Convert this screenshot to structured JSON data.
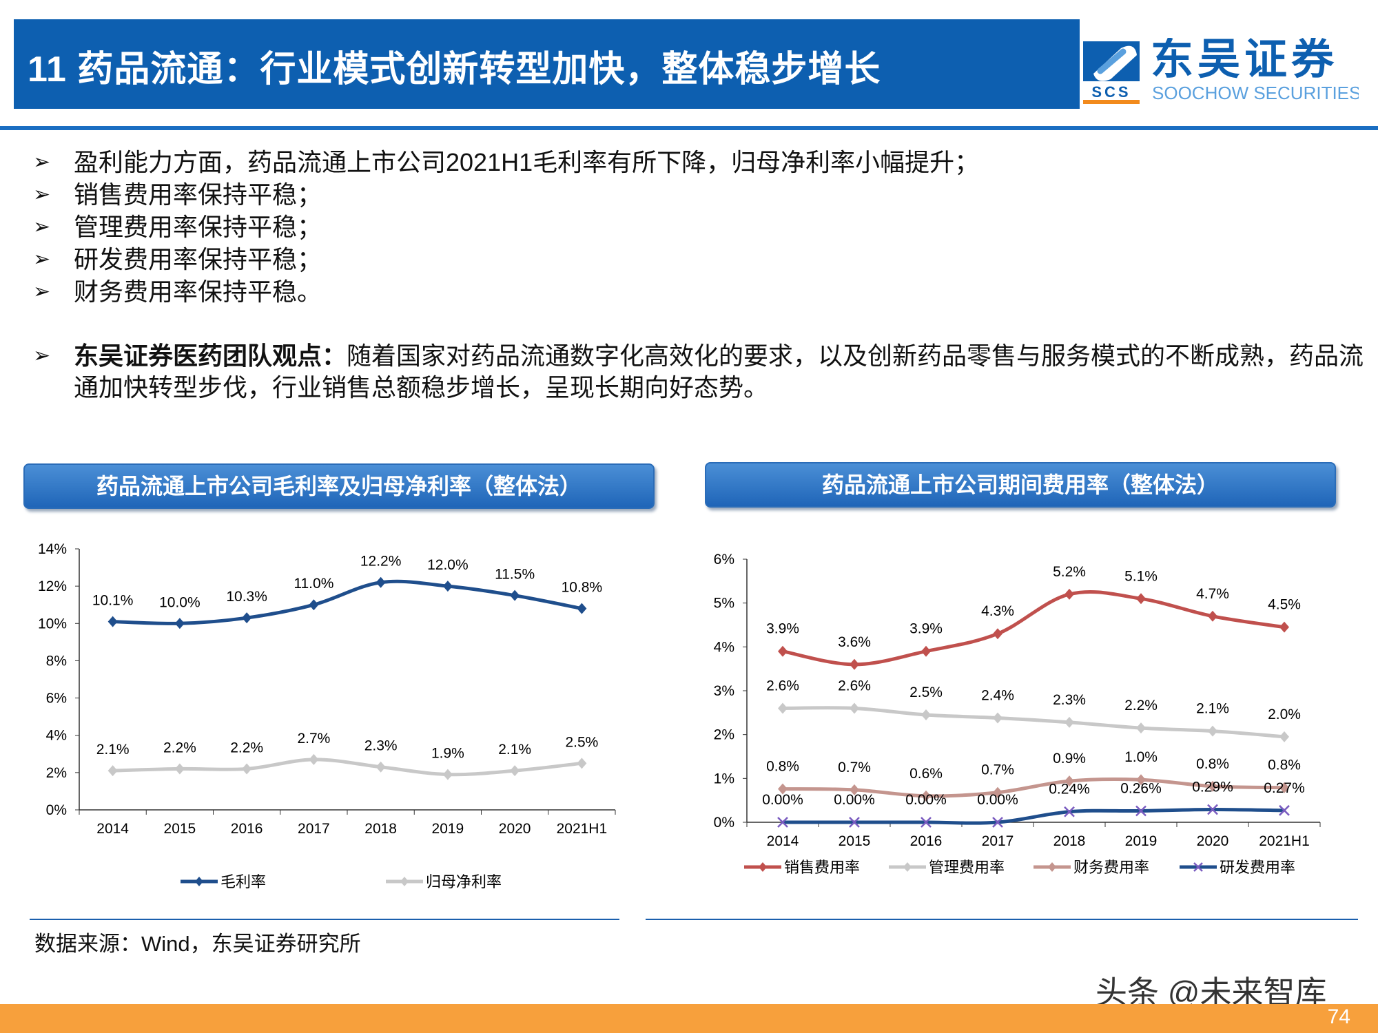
{
  "header": {
    "title": "11 药品流通：行业模式创新转型加快，整体稳步增长",
    "logo_cn": "东吴证券",
    "logo_en": "SOOCHOW SECURITIES",
    "logo_mark": "SCS"
  },
  "bullets": [
    "盈利能力方面，药品流通上市公司2021H1毛利率有所下降，归母净利率小幅提升；",
    "销售费用率保持平稳；",
    "管理费用率保持平稳；",
    "研发费用率保持平稳；",
    "财务费用率保持平稳。"
  ],
  "opinion": {
    "label": "东吴证券医药团队观点：",
    "text": "随着国家对药品流通数字化高效化的要求，以及创新药品零售与服务模式的不断成熟，药品流通加快转型步伐，行业销售总额稳步增长，呈现长期向好态势。"
  },
  "source": "数据来源：Wind，东吴证券研究所",
  "watermark": "头条 @未来智库",
  "page_number": "74",
  "chart_data": [
    {
      "type": "line",
      "title": "药品流通上市公司毛利率及归母净利率（整体法）",
      "categories": [
        "2014",
        "2015",
        "2016",
        "2017",
        "2018",
        "2019",
        "2020",
        "2021H1"
      ],
      "ylim": [
        0,
        14
      ],
      "yticks": [
        "0%",
        "2%",
        "4%",
        "6%",
        "8%",
        "10%",
        "12%",
        "14%"
      ],
      "legend": "bottom",
      "series": [
        {
          "name": "毛利率",
          "color": "#1f4e8c",
          "marker": "diamond",
          "values": [
            10.1,
            10.0,
            10.3,
            11.0,
            12.2,
            12.0,
            11.5,
            10.8
          ],
          "labels": [
            "10.1%",
            "10.0%",
            "10.3%",
            "11.0%",
            "12.2%",
            "12.0%",
            "11.5%",
            "10.8%"
          ]
        },
        {
          "name": "归母净利率",
          "color": "#c8c8c8",
          "marker": "diamond",
          "values": [
            2.1,
            2.2,
            2.2,
            2.7,
            2.3,
            1.9,
            2.1,
            2.5
          ],
          "labels": [
            "2.1%",
            "2.2%",
            "2.2%",
            "2.7%",
            "2.3%",
            "1.9%",
            "2.1%",
            "2.5%"
          ]
        }
      ]
    },
    {
      "type": "line",
      "title": "药品流通上市公司期间费用率（整体法）",
      "categories": [
        "2014",
        "2015",
        "2016",
        "2017",
        "2018",
        "2019",
        "2020",
        "2021H1"
      ],
      "ylim": [
        0,
        6
      ],
      "yticks": [
        "0%",
        "1%",
        "2%",
        "3%",
        "4%",
        "5%",
        "6%"
      ],
      "legend": "bottom",
      "series": [
        {
          "name": "销售费用率",
          "color": "#c0504d",
          "marker": "diamond",
          "values": [
            3.9,
            3.6,
            3.9,
            4.3,
            5.2,
            5.1,
            4.7,
            4.45
          ],
          "labels": [
            "3.9%",
            "3.6%",
            "3.9%",
            "4.3%",
            "5.2%",
            "5.1%",
            "4.7%",
            "4.5%"
          ]
        },
        {
          "name": "管理费用率",
          "color": "#c8c8c8",
          "marker": "diamond",
          "values": [
            2.6,
            2.6,
            2.45,
            2.38,
            2.28,
            2.15,
            2.08,
            1.95
          ],
          "labels": [
            "2.6%",
            "2.6%",
            "2.5%",
            "2.4%",
            "2.3%",
            "2.2%",
            "2.1%",
            "2.0%"
          ]
        },
        {
          "name": "财务费用率",
          "color": "#c4958e",
          "marker": "diamond",
          "values": [
            0.76,
            0.74,
            0.6,
            0.68,
            0.94,
            0.97,
            0.82,
            0.79
          ],
          "labels": [
            "0.8%",
            "0.7%",
            "0.6%",
            "0.7%",
            "0.9%",
            "1.0%",
            "0.8%",
            "0.8%"
          ]
        },
        {
          "name": "研发费用率",
          "color": "#1f4e8c",
          "marker": "x",
          "values": [
            0,
            0,
            0,
            0,
            0.24,
            0.26,
            0.29,
            0.27
          ],
          "labels": [
            "0.00%",
            "0.00%",
            "0.00%",
            "0.00%",
            "0.24%",
            "0.26%",
            "0.29%",
            "0.27%"
          ]
        }
      ]
    }
  ]
}
